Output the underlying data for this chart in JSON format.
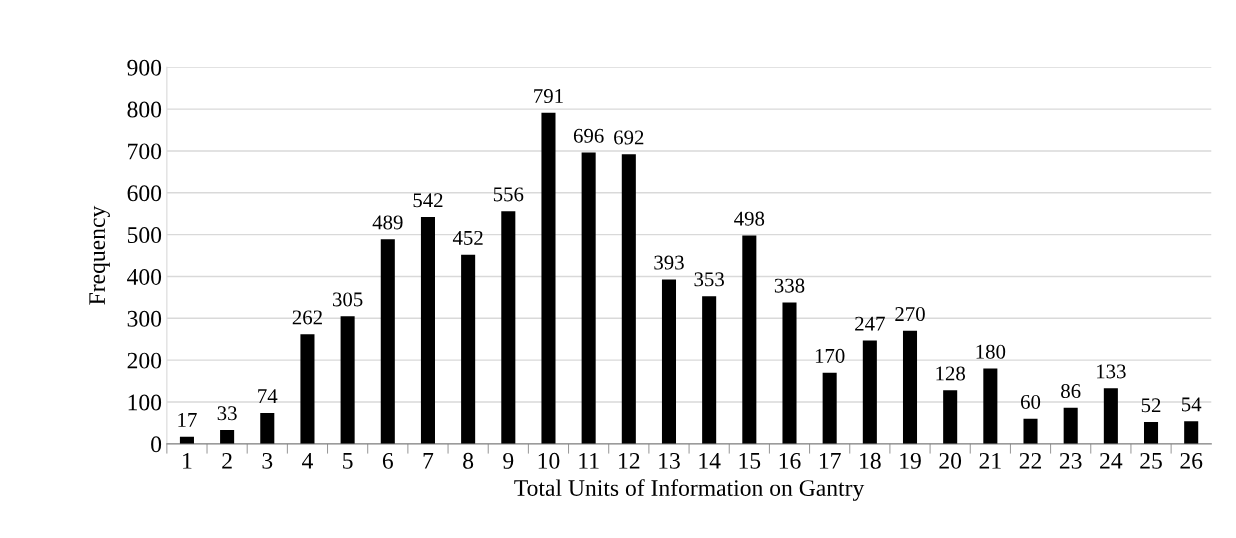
{
  "chart_data": {
    "type": "bar",
    "xlabel": "Total Units of Information on Gantry",
    "ylabel": "Frequency",
    "categories": [
      "1",
      "2",
      "3",
      "4",
      "5",
      "6",
      "7",
      "8",
      "9",
      "10",
      "11",
      "12",
      "13",
      "14",
      "15",
      "16",
      "17",
      "18",
      "19",
      "20",
      "21",
      "22",
      "23",
      "24",
      "25",
      "26"
    ],
    "values": [
      17,
      33,
      74,
      262,
      305,
      489,
      542,
      452,
      556,
      791,
      696,
      692,
      393,
      353,
      498,
      338,
      170,
      247,
      270,
      128,
      180,
      60,
      86,
      133,
      52,
      54
    ],
    "color": "#000000",
    "ylim": [
      0,
      900
    ],
    "yticks": [
      0,
      100,
      200,
      300,
      400,
      500,
      600,
      700,
      800,
      900
    ],
    "grid": "y",
    "data_labels": true
  }
}
